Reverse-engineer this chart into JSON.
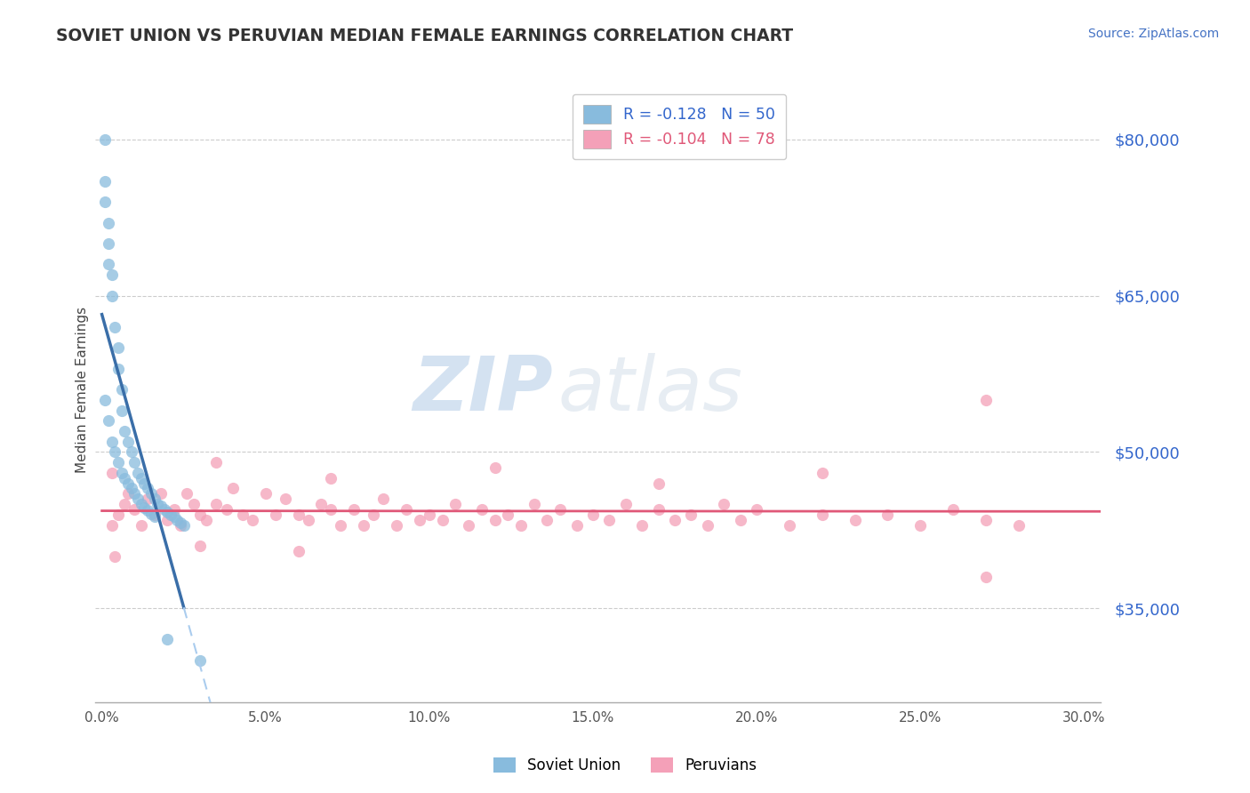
{
  "title": "SOVIET UNION VS PERUVIAN MEDIAN FEMALE EARNINGS CORRELATION CHART",
  "source": "Source: ZipAtlas.com",
  "ylabel": "Median Female Earnings",
  "xlim": [
    -0.002,
    0.305
  ],
  "ylim": [
    26000,
    86000
  ],
  "yticks": [
    35000,
    50000,
    65000,
    80000
  ],
  "ytick_labels": [
    "$35,000",
    "$50,000",
    "$65,000",
    "$80,000"
  ],
  "xticks": [
    0.0,
    0.05,
    0.1,
    0.15,
    0.2,
    0.25,
    0.3
  ],
  "xtick_labels": [
    "0.0%",
    "5.0%",
    "10.0%",
    "15.0%",
    "20.0%",
    "25.0%",
    "30.0%"
  ],
  "background_color": "#ffffff",
  "title_color": "#444444",
  "grid_color": "#cccccc",
  "soviet_color": "#88bbdd",
  "peruvian_color": "#f4a0b8",
  "soviet_line_color": "#3a6ea8",
  "soviet_dash_color": "#aaccee",
  "peruvian_line_color": "#e05878",
  "legend_soviet_R": "-0.128",
  "legend_soviet_N": "50",
  "legend_peruvian_R": "-0.104",
  "legend_peruvian_N": "78",
  "watermark_zip": "ZIP",
  "watermark_atlas": "atlas",
  "soviet_x": [
    0.001,
    0.001,
    0.002,
    0.002,
    0.003,
    0.003,
    0.004,
    0.005,
    0.005,
    0.006,
    0.006,
    0.007,
    0.008,
    0.009,
    0.01,
    0.011,
    0.012,
    0.013,
    0.014,
    0.015,
    0.016,
    0.017,
    0.018,
    0.019,
    0.02,
    0.021,
    0.022,
    0.023,
    0.024,
    0.025,
    0.001,
    0.002,
    0.003,
    0.004,
    0.005,
    0.006,
    0.007,
    0.008,
    0.009,
    0.01,
    0.011,
    0.012,
    0.013,
    0.014,
    0.015,
    0.016,
    0.001,
    0.002,
    0.02,
    0.03
  ],
  "soviet_y": [
    76000,
    74000,
    70000,
    68000,
    67000,
    65000,
    62000,
    60000,
    58000,
    56000,
    54000,
    52000,
    51000,
    50000,
    49000,
    48000,
    47500,
    47000,
    46500,
    46000,
    45500,
    45000,
    44800,
    44500,
    44200,
    44000,
    43800,
    43500,
    43200,
    43000,
    55000,
    53000,
    51000,
    50000,
    49000,
    48000,
    47500,
    47000,
    46500,
    46000,
    45500,
    45000,
    44700,
    44400,
    44100,
    43800,
    80000,
    72000,
    32000,
    30000
  ],
  "peruvian_x": [
    0.003,
    0.005,
    0.007,
    0.008,
    0.01,
    0.012,
    0.014,
    0.016,
    0.018,
    0.02,
    0.022,
    0.024,
    0.026,
    0.028,
    0.03,
    0.032,
    0.035,
    0.038,
    0.04,
    0.043,
    0.046,
    0.05,
    0.053,
    0.056,
    0.06,
    0.063,
    0.067,
    0.07,
    0.073,
    0.077,
    0.08,
    0.083,
    0.086,
    0.09,
    0.093,
    0.097,
    0.1,
    0.104,
    0.108,
    0.112,
    0.116,
    0.12,
    0.124,
    0.128,
    0.132,
    0.136,
    0.14,
    0.145,
    0.15,
    0.155,
    0.16,
    0.165,
    0.17,
    0.175,
    0.18,
    0.185,
    0.19,
    0.195,
    0.2,
    0.21,
    0.22,
    0.23,
    0.24,
    0.25,
    0.26,
    0.27,
    0.28,
    0.003,
    0.035,
    0.07,
    0.12,
    0.17,
    0.22,
    0.27,
    0.004,
    0.03,
    0.06,
    0.27
  ],
  "peruvian_y": [
    43000,
    44000,
    45000,
    46000,
    44500,
    43000,
    45500,
    44000,
    46000,
    43500,
    44500,
    43000,
    46000,
    45000,
    44000,
    43500,
    45000,
    44500,
    46500,
    44000,
    43500,
    46000,
    44000,
    45500,
    44000,
    43500,
    45000,
    44500,
    43000,
    44500,
    43000,
    44000,
    45500,
    43000,
    44500,
    43500,
    44000,
    43500,
    45000,
    43000,
    44500,
    43500,
    44000,
    43000,
    45000,
    43500,
    44500,
    43000,
    44000,
    43500,
    45000,
    43000,
    44500,
    43500,
    44000,
    43000,
    45000,
    43500,
    44500,
    43000,
    44000,
    43500,
    44000,
    43000,
    44500,
    43500,
    43000,
    48000,
    49000,
    47500,
    48500,
    47000,
    48000,
    55000,
    40000,
    41000,
    40500,
    38000
  ]
}
